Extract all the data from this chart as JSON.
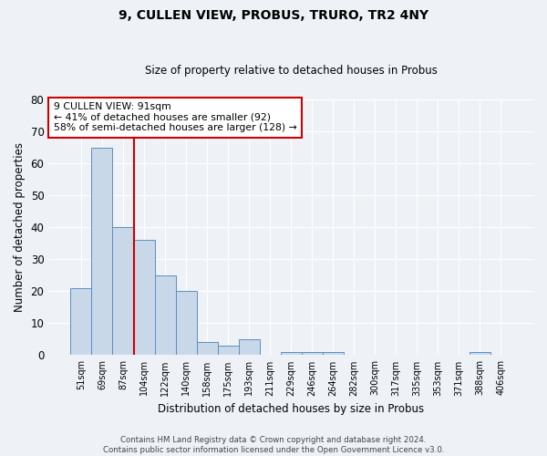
{
  "title": "9, CULLEN VIEW, PROBUS, TRURO, TR2 4NY",
  "subtitle": "Size of property relative to detached houses in Probus",
  "xlabel": "Distribution of detached houses by size in Probus",
  "ylabel": "Number of detached properties",
  "categories": [
    "51sqm",
    "69sqm",
    "87sqm",
    "104sqm",
    "122sqm",
    "140sqm",
    "158sqm",
    "175sqm",
    "193sqm",
    "211sqm",
    "229sqm",
    "246sqm",
    "264sqm",
    "282sqm",
    "300sqm",
    "317sqm",
    "335sqm",
    "353sqm",
    "371sqm",
    "388sqm",
    "406sqm"
  ],
  "values": [
    21,
    65,
    40,
    36,
    25,
    20,
    4,
    3,
    5,
    0,
    1,
    1,
    1,
    0,
    0,
    0,
    0,
    0,
    0,
    1,
    0
  ],
  "bar_color": "#c8d8e8",
  "bar_edge_color": "#5a8fc0",
  "ylim": [
    0,
    80
  ],
  "yticks": [
    0,
    10,
    20,
    30,
    40,
    50,
    60,
    70,
    80
  ],
  "property_line_color": "#cc0000",
  "annotation_box_color": "#cc0000",
  "annotation_box_text_line1": "9 CULLEN VIEW: 91sqm",
  "annotation_box_text_line2": "← 41% of detached houses are smaller (92)",
  "annotation_box_text_line3": "58% of semi-detached houses are larger (128) →",
  "background_color": "#eef2f7",
  "grid_color": "#ffffff",
  "footer_line1": "Contains HM Land Registry data © Crown copyright and database right 2024.",
  "footer_line2": "Contains public sector information licensed under the Open Government Licence v3.0."
}
